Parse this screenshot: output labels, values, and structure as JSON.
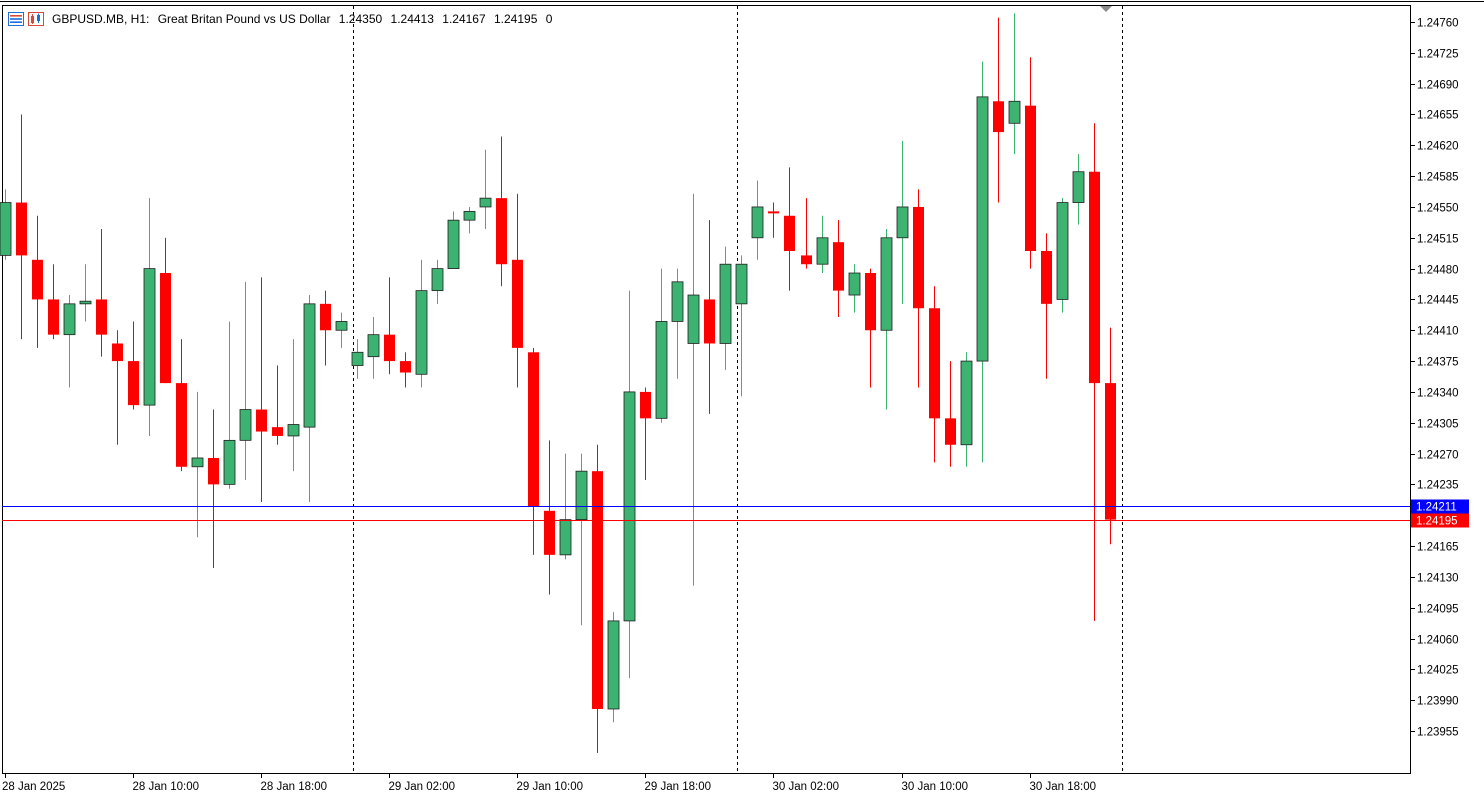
{
  "header": {
    "symbol_label": "GBPUSD.MB, H1:",
    "description": "Great Britan Pound vs US Dollar",
    "ohlc": [
      "1.24350",
      "1.24413",
      "1.24167",
      "1.24195",
      "0"
    ],
    "icons": [
      "menu-icon",
      "chart-type-icon"
    ]
  },
  "colors": {
    "bull": "#3cb371",
    "bear": "#ff0000",
    "bid_line": "#0000ff",
    "current_line": "#ff0000",
    "grid": "#000000",
    "background": "#ffffff"
  },
  "chart_data": {
    "type": "candlestick",
    "symbol": "GBPUSD.MB",
    "timeframe": "H1",
    "ylim": [
      1.2392,
      1.2478
    ],
    "y_ticks": [
      "1.24760",
      "1.24725",
      "1.24690",
      "1.24655",
      "1.24620",
      "1.24585",
      "1.24550",
      "1.24515",
      "1.24480",
      "1.24445",
      "1.24410",
      "1.24375",
      "1.24340",
      "1.24305",
      "1.24270",
      "1.24235",
      "1.24165",
      "1.24130",
      "1.24095",
      "1.24060",
      "1.24025",
      "1.23990",
      "1.23955"
    ],
    "x_ticks": [
      {
        "label": "28 Jan 2025",
        "index": 0
      },
      {
        "label": "28 Jan 10:00",
        "index": 8
      },
      {
        "label": "28 Jan 18:00",
        "index": 16
      },
      {
        "label": "29 Jan 02:00",
        "index": 24
      },
      {
        "label": "29 Jan 10:00",
        "index": 32
      },
      {
        "label": "29 Jan 18:00",
        "index": 40
      },
      {
        "label": "30 Jan 02:00",
        "index": 48
      },
      {
        "label": "30 Jan 10:00",
        "index": 56
      },
      {
        "label": "30 Jan 18:00",
        "index": 64
      }
    ],
    "day_separators": [
      21.75,
      45.75,
      69.75
    ],
    "price_lines": [
      {
        "name": "bid",
        "value": 1.24211,
        "label": "1.24211"
      },
      {
        "name": "current",
        "value": 1.24195,
        "label": "1.24195"
      }
    ],
    "candles": [
      {
        "o": 1.24495,
        "h": 1.2457,
        "l": 1.2449,
        "c": 1.24555
      },
      {
        "o": 1.24555,
        "h": 1.24655,
        "l": 1.244,
        "c": 1.24495
      },
      {
        "o": 1.2449,
        "h": 1.2454,
        "l": 1.2439,
        "c": 1.24445
      },
      {
        "o": 1.24445,
        "h": 1.24485,
        "l": 1.244,
        "c": 1.24405
      },
      {
        "o": 1.24405,
        "h": 1.2445,
        "l": 1.24345,
        "c": 1.2444
      },
      {
        "o": 1.2444,
        "h": 1.24485,
        "l": 1.2442,
        "c": 1.24443
      },
      {
        "o": 1.24445,
        "h": 1.24525,
        "l": 1.2438,
        "c": 1.24405
      },
      {
        "o": 1.24395,
        "h": 1.2441,
        "l": 1.2428,
        "c": 1.24375
      },
      {
        "o": 1.24375,
        "h": 1.2442,
        "l": 1.2432,
        "c": 1.24325
      },
      {
        "o": 1.24325,
        "h": 1.2456,
        "l": 1.2429,
        "c": 1.2448
      },
      {
        "o": 1.24475,
        "h": 1.24515,
        "l": 1.2435,
        "c": 1.2435
      },
      {
        "o": 1.2435,
        "h": 1.244,
        "l": 1.2425,
        "c": 1.24255
      },
      {
        "o": 1.24255,
        "h": 1.2434,
        "l": 1.24175,
        "c": 1.24265
      },
      {
        "o": 1.24265,
        "h": 1.2432,
        "l": 1.2414,
        "c": 1.24235
      },
      {
        "o": 1.24235,
        "h": 1.2442,
        "l": 1.2423,
        "c": 1.24285
      },
      {
        "o": 1.24285,
        "h": 1.24465,
        "l": 1.2424,
        "c": 1.2432
      },
      {
        "o": 1.2432,
        "h": 1.2447,
        "l": 1.24215,
        "c": 1.24295
      },
      {
        "o": 1.243,
        "h": 1.2437,
        "l": 1.2428,
        "c": 1.2429
      },
      {
        "o": 1.2429,
        "h": 1.244,
        "l": 1.2425,
        "c": 1.24303
      },
      {
        "o": 1.243,
        "h": 1.2445,
        "l": 1.24215,
        "c": 1.2444
      },
      {
        "o": 1.2444,
        "h": 1.24455,
        "l": 1.2437,
        "c": 1.2441
      },
      {
        "o": 1.2441,
        "h": 1.2443,
        "l": 1.2439,
        "c": 1.2442
      },
      {
        "o": 1.2437,
        "h": 1.244,
        "l": 1.24355,
        "c": 1.24385
      },
      {
        "o": 1.2438,
        "h": 1.24425,
        "l": 1.24355,
        "c": 1.24405
      },
      {
        "o": 1.24405,
        "h": 1.2447,
        "l": 1.2436,
        "c": 1.24375
      },
      {
        "o": 1.24375,
        "h": 1.24385,
        "l": 1.24345,
        "c": 1.24362
      },
      {
        "o": 1.2436,
        "h": 1.2449,
        "l": 1.24345,
        "c": 1.24455
      },
      {
        "o": 1.24455,
        "h": 1.2449,
        "l": 1.2444,
        "c": 1.2448
      },
      {
        "o": 1.2448,
        "h": 1.24545,
        "l": 1.2448,
        "c": 1.24535
      },
      {
        "o": 1.24535,
        "h": 1.2455,
        "l": 1.2452,
        "c": 1.24545
      },
      {
        "o": 1.2455,
        "h": 1.24615,
        "l": 1.24525,
        "c": 1.2456
      },
      {
        "o": 1.2456,
        "h": 1.2463,
        "l": 1.2446,
        "c": 1.24485
      },
      {
        "o": 1.2449,
        "h": 1.24565,
        "l": 1.24345,
        "c": 1.2439
      },
      {
        "o": 1.24385,
        "h": 1.2439,
        "l": 1.24155,
        "c": 1.2421
      },
      {
        "o": 1.24205,
        "h": 1.24285,
        "l": 1.2411,
        "c": 1.24155
      },
      {
        "o": 1.24155,
        "h": 1.2427,
        "l": 1.2415,
        "c": 1.24195
      },
      {
        "o": 1.24195,
        "h": 1.2427,
        "l": 1.24075,
        "c": 1.2425
      },
      {
        "o": 1.2425,
        "h": 1.2428,
        "l": 1.2393,
        "c": 1.2398
      },
      {
        "o": 1.2398,
        "h": 1.2409,
        "l": 1.23965,
        "c": 1.2408
      },
      {
        "o": 1.2408,
        "h": 1.24455,
        "l": 1.24015,
        "c": 1.2434
      },
      {
        "o": 1.2434,
        "h": 1.24345,
        "l": 1.2424,
        "c": 1.2431
      },
      {
        "o": 1.2431,
        "h": 1.2448,
        "l": 1.24305,
        "c": 1.2442
      },
      {
        "o": 1.2442,
        "h": 1.2448,
        "l": 1.24355,
        "c": 1.24465
      },
      {
        "o": 1.24395,
        "h": 1.24565,
        "l": 1.2412,
        "c": 1.2445
      },
      {
        "o": 1.24445,
        "h": 1.24535,
        "l": 1.24315,
        "c": 1.24395
      },
      {
        "o": 1.24395,
        "h": 1.24505,
        "l": 1.24365,
        "c": 1.24485
      },
      {
        "o": 1.2444,
        "h": 1.24495,
        "l": 1.24335,
        "c": 1.24485
      },
      {
        "o": 1.24515,
        "h": 1.2458,
        "l": 1.2449,
        "c": 1.2455
      },
      {
        "o": 1.24545,
        "h": 1.24555,
        "l": 1.24515,
        "c": 1.24543
      },
      {
        "o": 1.2454,
        "h": 1.24595,
        "l": 1.24455,
        "c": 1.245
      },
      {
        "o": 1.24495,
        "h": 1.2456,
        "l": 1.2448,
        "c": 1.24485
      },
      {
        "o": 1.24485,
        "h": 1.2454,
        "l": 1.24475,
        "c": 1.24515
      },
      {
        "o": 1.2451,
        "h": 1.24535,
        "l": 1.24425,
        "c": 1.24455
      },
      {
        "o": 1.2445,
        "h": 1.24485,
        "l": 1.2443,
        "c": 1.24475
      },
      {
        "o": 1.24475,
        "h": 1.2448,
        "l": 1.24345,
        "c": 1.2441
      },
      {
        "o": 1.2441,
        "h": 1.24525,
        "l": 1.2432,
        "c": 1.24515
      },
      {
        "o": 1.24515,
        "h": 1.24625,
        "l": 1.2444,
        "c": 1.2455
      },
      {
        "o": 1.2455,
        "h": 1.2457,
        "l": 1.24345,
        "c": 1.24435
      },
      {
        "o": 1.24435,
        "h": 1.2446,
        "l": 1.2426,
        "c": 1.2431
      },
      {
        "o": 1.2431,
        "h": 1.24375,
        "l": 1.24255,
        "c": 1.2428
      },
      {
        "o": 1.2428,
        "h": 1.24385,
        "l": 1.24255,
        "c": 1.24375
      },
      {
        "o": 1.24375,
        "h": 1.24715,
        "l": 1.2426,
        "c": 1.24675
      },
      {
        "o": 1.2467,
        "h": 1.24765,
        "l": 1.24555,
        "c": 1.24635
      },
      {
        "o": 1.24645,
        "h": 1.2477,
        "l": 1.2461,
        "c": 1.2467
      },
      {
        "o": 1.24665,
        "h": 1.2472,
        "l": 1.2448,
        "c": 1.245
      },
      {
        "o": 1.245,
        "h": 1.2452,
        "l": 1.24355,
        "c": 1.2444
      },
      {
        "o": 1.24445,
        "h": 1.2456,
        "l": 1.2443,
        "c": 1.24555
      },
      {
        "o": 1.24555,
        "h": 1.2461,
        "l": 1.2453,
        "c": 1.2459
      },
      {
        "o": 1.2459,
        "h": 1.24645,
        "l": 1.2408,
        "c": 1.2435
      },
      {
        "o": 1.2435,
        "h": 1.24413,
        "l": 1.24167,
        "c": 1.24195
      }
    ]
  }
}
